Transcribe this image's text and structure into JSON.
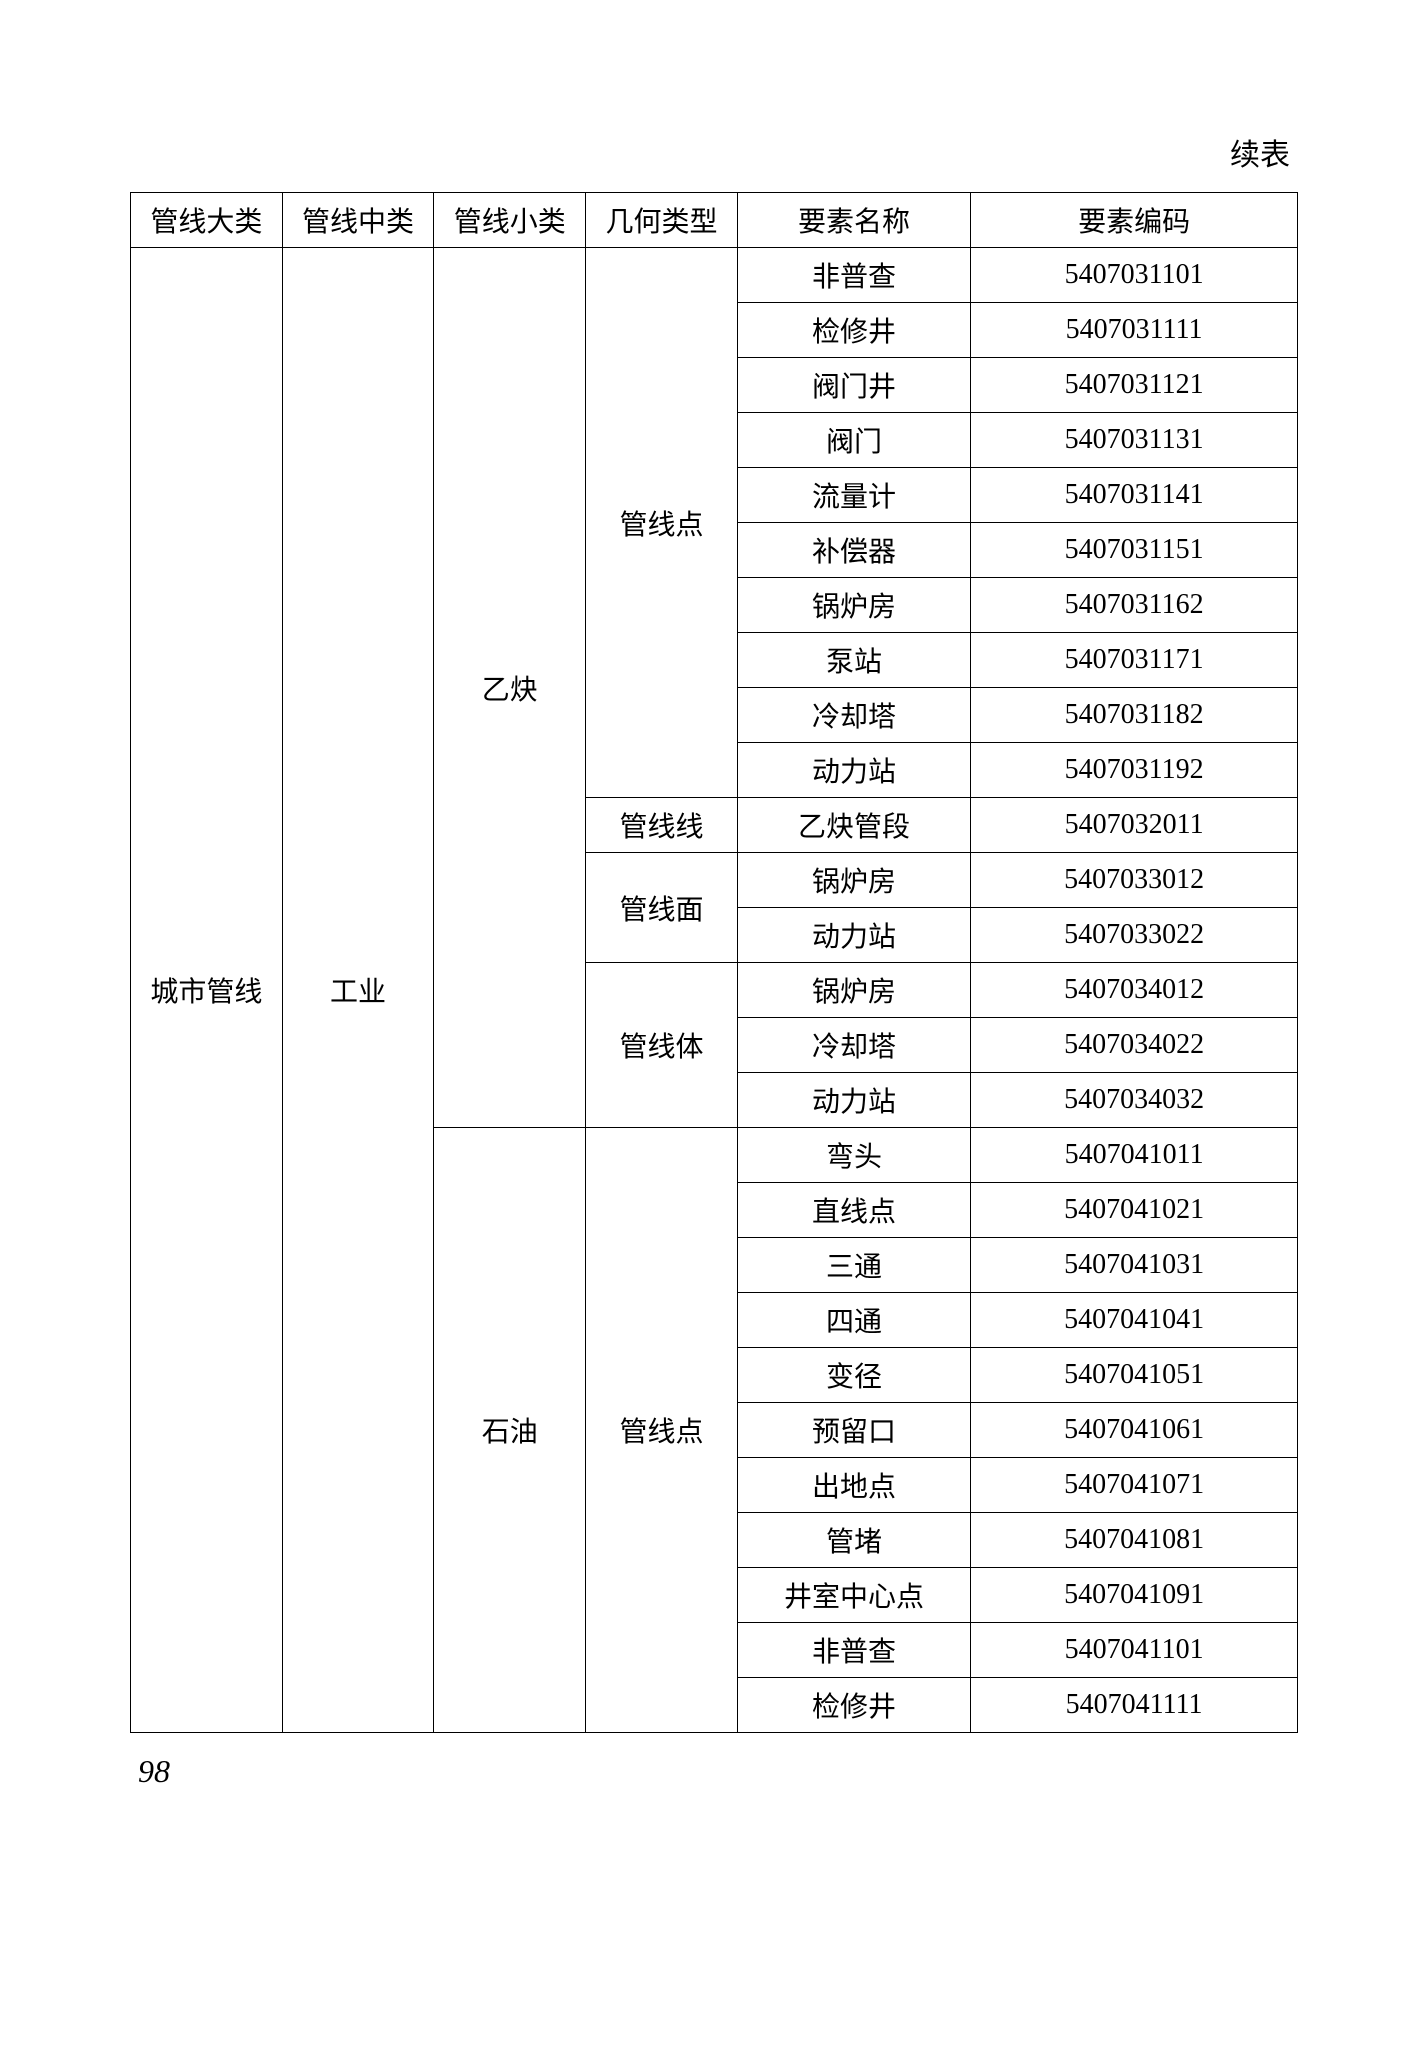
{
  "continued_label": "续表",
  "page_number": "98",
  "table": {
    "type": "table",
    "border_color": "#000000",
    "background_color": "#ffffff",
    "text_color": "#000000",
    "font_size_pt": 14,
    "columns": [
      {
        "key": "c1",
        "label": "管线大类",
        "width_pct": 13
      },
      {
        "key": "c2",
        "label": "管线中类",
        "width_pct": 13
      },
      {
        "key": "c3",
        "label": "管线小类",
        "width_pct": 13
      },
      {
        "key": "c4",
        "label": "几何类型",
        "width_pct": 13
      },
      {
        "key": "c5",
        "label": "要素名称",
        "width_pct": 20
      },
      {
        "key": "c6",
        "label": "要素编码",
        "width_pct": 28
      }
    ],
    "body": {
      "c1": {
        "value": "城市管线",
        "rowspan": 27
      },
      "c2": {
        "value": "工业",
        "rowspan": 27
      },
      "c3_groups": [
        {
          "value": "乙炔",
          "rowspan": 16,
          "c4_groups": [
            {
              "value": "管线点",
              "rowspan": 10,
              "rows": [
                {
                  "name": "非普查",
                  "code": "5407031101"
                },
                {
                  "name": "检修井",
                  "code": "5407031111"
                },
                {
                  "name": "阀门井",
                  "code": "5407031121"
                },
                {
                  "name": "阀门",
                  "code": "5407031131"
                },
                {
                  "name": "流量计",
                  "code": "5407031141"
                },
                {
                  "name": "补偿器",
                  "code": "5407031151"
                },
                {
                  "name": "锅炉房",
                  "code": "5407031162"
                },
                {
                  "name": "泵站",
                  "code": "5407031171"
                },
                {
                  "name": "冷却塔",
                  "code": "5407031182"
                },
                {
                  "name": "动力站",
                  "code": "5407031192"
                }
              ]
            },
            {
              "value": "管线线",
              "rowspan": 1,
              "rows": [
                {
                  "name": "乙炔管段",
                  "code": "5407032011"
                }
              ]
            },
            {
              "value": "管线面",
              "rowspan": 2,
              "rows": [
                {
                  "name": "锅炉房",
                  "code": "5407033012"
                },
                {
                  "name": "动力站",
                  "code": "5407033022"
                }
              ]
            },
            {
              "value": "管线体",
              "rowspan": 3,
              "rows": [
                {
                  "name": "锅炉房",
                  "code": "5407034012"
                },
                {
                  "name": "冷却塔",
                  "code": "5407034022"
                },
                {
                  "name": "动力站",
                  "code": "5407034032"
                }
              ]
            }
          ]
        },
        {
          "value": "石油",
          "rowspan": 11,
          "c4_groups": [
            {
              "value": "管线点",
              "rowspan": 11,
              "rows": [
                {
                  "name": "弯头",
                  "code": "5407041011"
                },
                {
                  "name": "直线点",
                  "code": "5407041021"
                },
                {
                  "name": "三通",
                  "code": "5407041031"
                },
                {
                  "name": "四通",
                  "code": "5407041041"
                },
                {
                  "name": "变径",
                  "code": "5407041051"
                },
                {
                  "name": "预留口",
                  "code": "5407041061"
                },
                {
                  "name": "出地点",
                  "code": "5407041071"
                },
                {
                  "name": "管堵",
                  "code": "5407041081"
                },
                {
                  "name": "井室中心点",
                  "code": "5407041091"
                },
                {
                  "name": "非普查",
                  "code": "5407041101"
                },
                {
                  "name": "检修井",
                  "code": "5407041111"
                }
              ]
            }
          ]
        }
      ]
    }
  }
}
